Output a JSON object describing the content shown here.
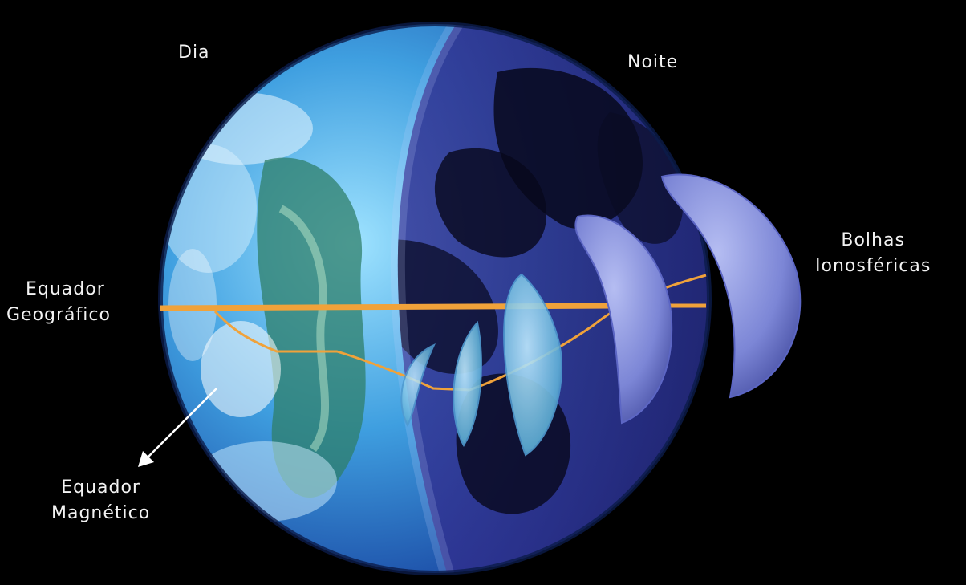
{
  "labels": {
    "day": "Dia",
    "night": "Noite",
    "bubbles": [
      "Bolhas",
      "Ionosféricas"
    ],
    "geo_equator": [
      "Equador",
      "Geográfico"
    ],
    "mag_equator": [
      "Equador",
      "Magnético"
    ]
  },
  "colors": {
    "background": "#000000",
    "equator_line": "#f0a23a",
    "bubble_fill": "#7c86d6",
    "day_ocean": "#3f9fe0",
    "night_side": "#3a3aa8"
  }
}
